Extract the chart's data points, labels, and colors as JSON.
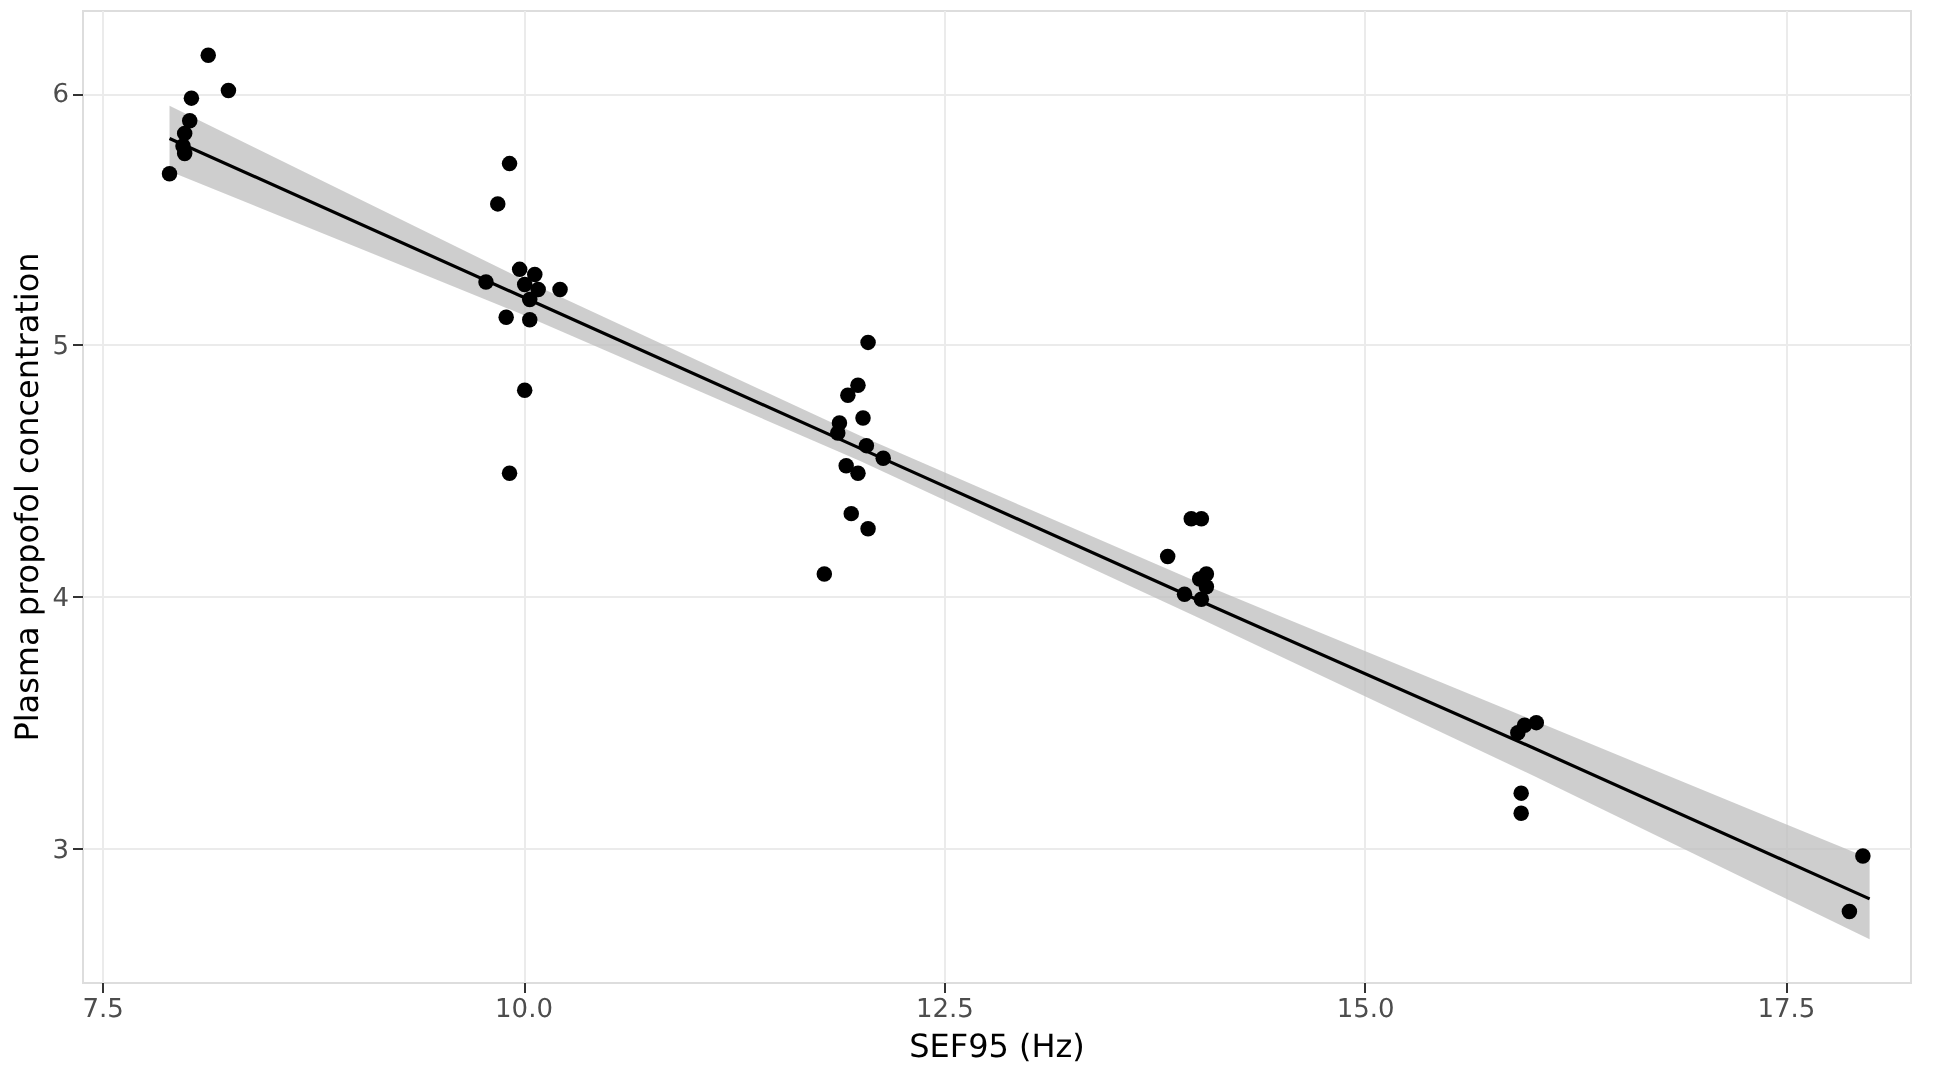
{
  "chart_data": {
    "type": "scatter",
    "xlabel": "SEF95 (Hz)",
    "ylabel": "Plasma propofol concentration",
    "xlim": [
      7.38,
      18.24
    ],
    "ylim": [
      2.47,
      6.33
    ],
    "xticks": [
      {
        "value": 7.5,
        "label": "7.5"
      },
      {
        "value": 10,
        "label": "10.0"
      },
      {
        "value": 12.5,
        "label": "12.5"
      },
      {
        "value": 15,
        "label": "15.0"
      },
      {
        "value": 17.5,
        "label": "17.5"
      }
    ],
    "yticks": [
      3,
      4,
      5,
      6
    ],
    "grid": true,
    "series": [
      {
        "color": "#000000",
        "marker": "circle",
        "x": [
          7.9,
          7.98,
          7.99,
          8.02,
          8.03,
          8.13,
          8.25,
          7.99,
          9.85,
          9.92,
          9.78,
          10.01,
          10.04,
          10.09,
          9.9,
          10.04,
          10.22,
          10.01,
          9.92,
          9.98,
          10.07,
          12.05,
          11.93,
          11.99,
          11.88,
          12.02,
          11.92,
          11.99,
          12.04,
          12.14,
          11.95,
          12.05,
          11.79,
          11.87,
          14.03,
          13.97,
          13.83,
          13.93,
          14.02,
          14.03,
          14.06,
          14.06,
          15.95,
          16.02,
          15.93,
          15.93,
          15.91,
          17.96,
          17.88
        ],
        "values": [
          5.68,
          5.79,
          5.76,
          5.89,
          5.98,
          6.15,
          6.01,
          5.84,
          5.56,
          5.72,
          5.25,
          5.24,
          5.18,
          5.22,
          5.11,
          5.1,
          5.22,
          4.82,
          4.49,
          5.3,
          5.28,
          5.01,
          4.8,
          4.84,
          4.69,
          4.71,
          4.52,
          4.49,
          4.6,
          4.55,
          4.33,
          4.27,
          4.09,
          4.65,
          4.31,
          4.31,
          4.16,
          4.01,
          4.07,
          3.99,
          4.04,
          4.09,
          3.49,
          3.5,
          3.22,
          3.14,
          3.46,
          2.97,
          2.75
        ]
      },
      {
        "type": "line",
        "color": "#000000",
        "line_style": "solid",
        "x": [
          7.9,
          10,
          12,
          14,
          16,
          18
        ],
        "values": [
          5.82,
          5.19,
          4.59,
          3.99,
          3.4,
          2.8
        ],
        "lower": [
          5.69,
          5.12,
          4.54,
          3.92,
          3.29,
          2.64
        ],
        "upper": [
          5.95,
          5.26,
          4.64,
          4.06,
          3.51,
          2.96
        ]
      }
    ]
  }
}
